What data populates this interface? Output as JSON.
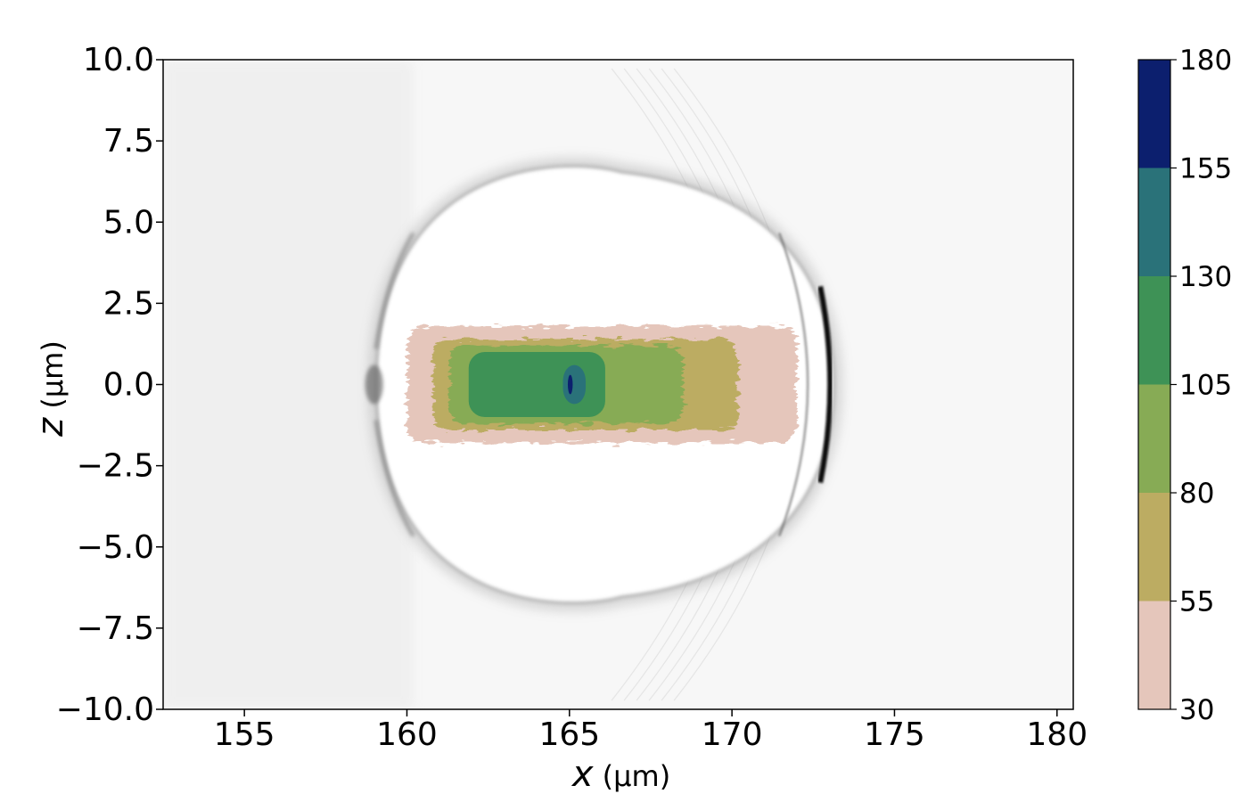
{
  "chart_data": {
    "type": "heatmap",
    "xlabel": {
      "symbol": "x",
      "unit": " (μm)"
    },
    "ylabel": {
      "symbol": "z",
      "unit": " (μm)"
    },
    "xlim": [
      152.5,
      180.5
    ],
    "ylim": [
      -10.0,
      10.0
    ],
    "x_ticks": [
      155,
      160,
      165,
      170,
      175,
      180
    ],
    "x_tick_labels": [
      "155",
      "160",
      "165",
      "170",
      "175",
      "180"
    ],
    "y_ticks": [
      10.0,
      7.5,
      5.0,
      2.5,
      0.0,
      -2.5,
      -5.0,
      -7.5,
      -10.0
    ],
    "y_tick_labels": [
      "10.0",
      "7.5",
      "5.0",
      "2.5",
      "0.0",
      "−2.5",
      "−5.0",
      "−7.5",
      "−10.0"
    ],
    "colorbar": {
      "levels": [
        30,
        55,
        80,
        105,
        130,
        155,
        180
      ],
      "labels": [
        "30",
        "55",
        "80",
        "105",
        "130",
        "155",
        "180"
      ],
      "colors": [
        "#e5c6bb",
        "#bcac62",
        "#87ab55",
        "#3e9256",
        "#2a7279",
        "#0c1f6e"
      ]
    },
    "background_field": {
      "colormap": "gray_r",
      "bubble_center_x": 165.5,
      "bubble_front_x": 173.1,
      "bubble_rear_x": 159.1,
      "bubble_half_height_z": 6.5
    },
    "contour_regions": [
      {
        "level_index": 0,
        "x": [
          160.0,
          172.0
        ],
        "z": [
          -1.8,
          1.8
        ]
      },
      {
        "level_index": 1,
        "x": [
          160.8,
          170.2
        ],
        "z": [
          -1.4,
          1.4
        ]
      },
      {
        "level_index": 2,
        "x": [
          161.3,
          168.5
        ],
        "z": [
          -1.2,
          1.2
        ]
      },
      {
        "level_index": 3,
        "x": [
          161.9,
          166.1
        ],
        "z": [
          -1.0,
          1.0
        ]
      },
      {
        "level_index": 4,
        "x": [
          164.8,
          165.5
        ],
        "z": [
          -0.6,
          0.6
        ]
      },
      {
        "level_index": 5,
        "x": [
          164.95,
          165.1
        ],
        "z": [
          -0.3,
          0.3
        ]
      }
    ]
  }
}
